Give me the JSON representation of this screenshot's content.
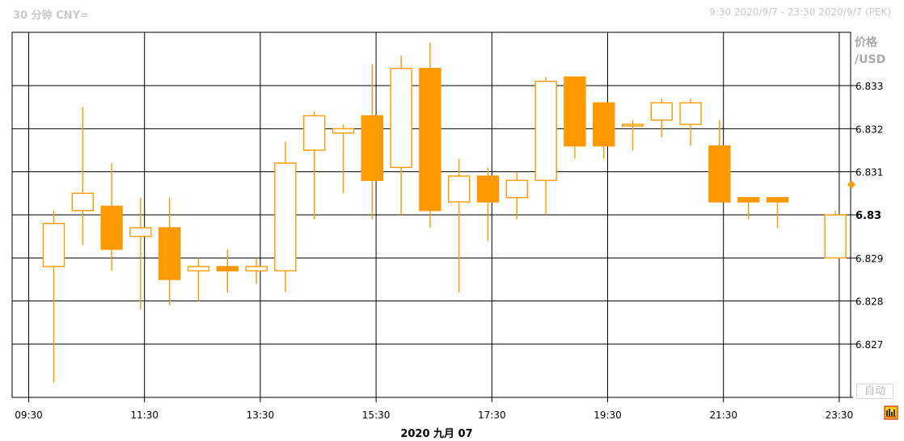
{
  "header": {
    "left_title": "30 分钟 CNY=",
    "right_range": "9:30 2020/9/7 - 23:30 2020/9/7 (PEK)"
  },
  "axis": {
    "unit_line1": "价格",
    "unit_line2": "/USD",
    "auto_label": "自动",
    "date_label": "2020 九月 07"
  },
  "colors": {
    "candle": "#FF9900",
    "grid": "#000000",
    "current_marker": "#FF9900"
  },
  "icons": {
    "corner": "chart-tool-icon"
  },
  "chart_data": {
    "type": "candlestick",
    "interval": "30 分钟",
    "ylim": [
      6.8262,
      6.8375
    ],
    "yticks": [
      "6.827",
      "6.828",
      "6.829",
      "6.83",
      "6.831",
      "6.832",
      "6.833"
    ],
    "xticks": [
      "09:30",
      "11:30",
      "13:30",
      "15:30",
      "17:30",
      "19:30",
      "21:30",
      "23:30"
    ],
    "current_marker_value": 6.8307,
    "grid": true,
    "candles": [
      {
        "t": "09:30",
        "open": 6.8288,
        "high": 6.8301,
        "low": 6.8261,
        "close": 6.8298
      },
      {
        "t": "10:00",
        "open": 6.8301,
        "high": 6.8325,
        "low": 6.8293,
        "close": 6.8305
      },
      {
        "t": "10:30",
        "open": 6.8302,
        "high": 6.8312,
        "low": 6.8287,
        "close": 6.8292
      },
      {
        "t": "11:00",
        "open": 6.8295,
        "high": 6.8304,
        "low": 6.8278,
        "close": 6.8297
      },
      {
        "t": "11:30",
        "open": 6.8297,
        "high": 6.8304,
        "low": 6.8279,
        "close": 6.8285
      },
      {
        "t": "12:00",
        "open": 6.8287,
        "high": 6.829,
        "low": 6.828,
        "close": 6.8288
      },
      {
        "t": "12:30",
        "open": 6.8288,
        "high": 6.8292,
        "low": 6.8282,
        "close": 6.8287
      },
      {
        "t": "13:00",
        "open": 6.8287,
        "high": 6.829,
        "low": 6.8284,
        "close": 6.8288
      },
      {
        "t": "13:30",
        "open": 6.8287,
        "high": 6.8317,
        "low": 6.8282,
        "close": 6.8312
      },
      {
        "t": "14:00",
        "open": 6.8315,
        "high": 6.8324,
        "low": 6.8299,
        "close": 6.8323
      },
      {
        "t": "14:30",
        "open": 6.8319,
        "high": 6.8321,
        "low": 6.8305,
        "close": 6.832
      },
      {
        "t": "15:00",
        "open": 6.8323,
        "high": 6.8335,
        "low": 6.8299,
        "close": 6.8308
      },
      {
        "t": "15:30",
        "open": 6.8311,
        "high": 6.8337,
        "low": 6.83,
        "close": 6.8334
      },
      {
        "t": "16:00",
        "open": 6.8334,
        "high": 6.834,
        "low": 6.8297,
        "close": 6.8301
      },
      {
        "t": "16:30",
        "open": 6.8303,
        "high": 6.8313,
        "low": 6.8282,
        "close": 6.8309
      },
      {
        "t": "17:00",
        "open": 6.8309,
        "high": 6.8311,
        "low": 6.8294,
        "close": 6.8303
      },
      {
        "t": "17:30",
        "open": 6.8304,
        "high": 6.831,
        "low": 6.8299,
        "close": 6.8308
      },
      {
        "t": "18:00",
        "open": 6.8308,
        "high": 6.8332,
        "low": 6.83,
        "close": 6.8331
      },
      {
        "t": "18:30",
        "open": 6.8332,
        "high": 6.8332,
        "low": 6.8313,
        "close": 6.8316
      },
      {
        "t": "19:00",
        "open": 6.8326,
        "high": 6.8326,
        "low": 6.8313,
        "close": 6.8316
      },
      {
        "t": "19:30",
        "open": 6.8321,
        "high": 6.8322,
        "low": 6.8315,
        "close": 6.8321
      },
      {
        "t": "20:00",
        "open": 6.8322,
        "high": 6.8327,
        "low": 6.8318,
        "close": 6.8326
      },
      {
        "t": "20:30",
        "open": 6.8321,
        "high": 6.8327,
        "low": 6.8316,
        "close": 6.8326
      },
      {
        "t": "21:00",
        "open": 6.8316,
        "high": 6.8322,
        "low": 6.8303,
        "close": 6.8303
      },
      {
        "t": "21:30",
        "open": 6.8304,
        "high": 6.8304,
        "low": 6.8299,
        "close": 6.8303
      },
      {
        "t": "22:00",
        "open": 6.8304,
        "high": 6.8304,
        "low": 6.8297,
        "close": 6.8303
      },
      {
        "t": "23:00",
        "open": 6.829,
        "high": 6.8301,
        "low": 6.829,
        "close": 6.83
      }
    ]
  }
}
